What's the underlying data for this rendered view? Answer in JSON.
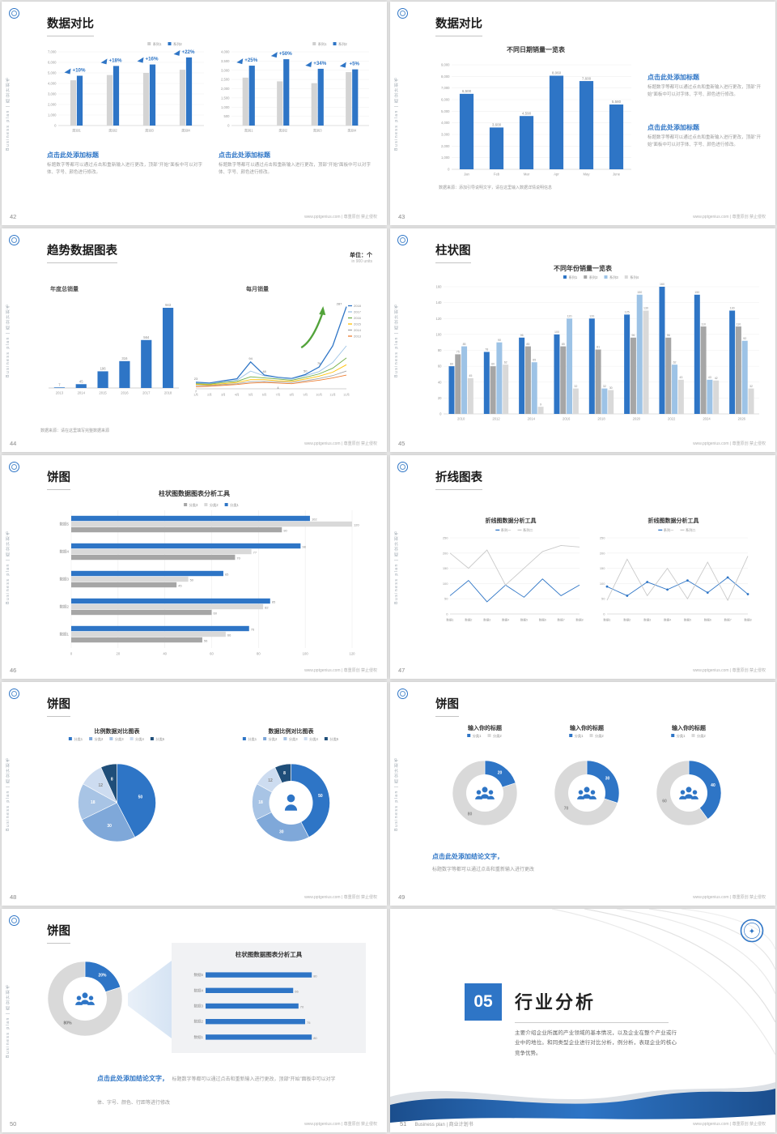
{
  "common": {
    "vertical_text": "Business plan | 商业计划书",
    "footer": "www.pptgenius.com | 尊重原创 禁止侵权",
    "accent": "#2e75c6"
  },
  "s42": {
    "number": "42",
    "title": "数据对比",
    "charts": [
      {
        "type": "bar",
        "legend": [
          "系列1",
          "系列2"
        ],
        "legend_colors": [
          "#cfcfcf",
          "#2e75c6"
        ],
        "yticks": [
          "7,000",
          "6,000",
          "5,000",
          "4,000",
          "3,000",
          "2,000",
          "1,000",
          "0"
        ],
        "ymax": 7000,
        "bar_max": 8,
        "categories": [
          "类别1",
          "类别2",
          "类别3",
          "类别4"
        ],
        "series": [
          {
            "name": "系列1",
            "color": "#d4d4d4",
            "values": [
              4300,
              4800,
              5000,
              5300
            ]
          },
          {
            "name": "系列2",
            "color": "#2e75c6",
            "values": [
              4730,
              5660,
              5800,
              6470
            ]
          }
        ],
        "callouts": [
          "+10%",
          "+18%",
          "+16%",
          "+22%"
        ]
      },
      {
        "type": "bar",
        "legend": [
          "系列1",
          "系列2"
        ],
        "legend_colors": [
          "#cfcfcf",
          "#2e75c6"
        ],
        "yticks": [
          "4,000",
          "3,500",
          "3,000",
          "2,500",
          "2,000",
          "1,500",
          "1,000",
          "500",
          "0"
        ],
        "ymax": 4000,
        "bar_max": 8,
        "categories": [
          "类别1",
          "类别2",
          "类别3",
          "类别4"
        ],
        "series": [
          {
            "name": "系列1",
            "color": "#d4d4d4",
            "values": [
              2600,
              2400,
              2300,
              2900
            ]
          },
          {
            "name": "系列2",
            "color": "#2e75c6",
            "values": [
              3250,
              3600,
              3080,
              3050
            ]
          }
        ],
        "callouts": [
          "+25%",
          "+50%",
          "+34%",
          "+5%"
        ]
      }
    ],
    "blocks": [
      {
        "heading": "点击此处添加标题",
        "body": "标题数字等都可以通过点击和重新输入进行更改，顶部“开始”面板中可以对字体、字号、颜色进行修改。"
      },
      {
        "heading": "点击此处添加标题",
        "body": "标题数字等都可以通过点击和重新输入进行更改，顶部“开始”面板中可以对字体、字号、颜色进行修改。"
      }
    ]
  },
  "s43": {
    "number": "43",
    "title": "数据对比",
    "chart_title": "不同日期销量一览表",
    "chart": {
      "type": "bar",
      "ml": 24,
      "mt": 12,
      "bar_max": 18,
      "label_size": 4.5,
      "yticks": [
        "9,000",
        "8,000",
        "7,000",
        "6,000",
        "5,000",
        "4,000",
        "3,000",
        "2,000",
        "1,000",
        "0"
      ],
      "ymax": 9000,
      "categories": [
        "Jan",
        "Feb",
        "Mar",
        "Apr",
        "May",
        "June"
      ],
      "series": [
        {
          "name": "销量",
          "color": "#2e75c6",
          "values": [
            6500,
            3600,
            4590,
            8060,
            7600,
            5580
          ]
        }
      ],
      "bar_labels": true,
      "label_text": [
        [
          "6,500",
          "3,600",
          "4,590",
          "8,060",
          "7,600",
          "5,580"
        ]
      ]
    },
    "blocks": [
      {
        "heading": "点击此处添加标题",
        "body": "标题数字等都可以通过点击和重新输入进行更改，顶部“开始”面板中可以对字体、字号、颜色进行修改。"
      },
      {
        "heading": "点击此处添加标题",
        "body": "标题数字等都可以通过点击和重新输入进行更改，顶部“开始”面板中可以对字体、字号、颜色进行修改。"
      }
    ],
    "source": "数据来源：添加引导说明文字，请在这里输入数据详情说明信息"
  },
  "s44": {
    "number": "44",
    "title": "趋势数据图表",
    "unit_label": "单位：个",
    "unit_sub": "in 900 units",
    "bar_title": "年度总销量",
    "line_title": "每月销量",
    "bar": {
      "type": "bar",
      "ml": 10,
      "mt": 10,
      "bar_max": 14,
      "label_size": 4.2,
      "yticks": [],
      "ymax": 1000,
      "categories": [
        "2013",
        "2014",
        "2015",
        "2016",
        "2017",
        "2018"
      ],
      "series": [
        {
          "name": "年度总销量",
          "color": "#2e75c6",
          "values": [
            7,
            45,
            196,
            316,
            564,
            943
          ]
        }
      ],
      "bar_labels": true
    },
    "line": {
      "type": "line",
      "ml": 8,
      "mt": 10,
      "yticks": [],
      "ymax": 300,
      "legend_pos": "right",
      "x": [
        "1月",
        "2月",
        "3月",
        "4月",
        "5月",
        "6月",
        "7月",
        "8月",
        "9月",
        "10月",
        "11月",
        "12月"
      ],
      "series": [
        {
          "name": "2018",
          "color": "#2e75c6",
          "values": [
            23,
            20,
            28,
            35,
            94,
            48,
            40,
            36,
            50,
            76,
            150,
            287
          ],
          "width": 1.3
        },
        {
          "name": "2017",
          "color": "#9dc3e6",
          "values": [
            20,
            18,
            25,
            30,
            62,
            45,
            38,
            34,
            46,
            60,
            92,
            150
          ]
        },
        {
          "name": "2016",
          "color": "#70ad47",
          "values": [
            18,
            16,
            22,
            26,
            42,
            38,
            34,
            30,
            40,
            52,
            72,
            108
          ]
        },
        {
          "name": "2015",
          "color": "#ffc000",
          "values": [
            15,
            14,
            18,
            22,
            32,
            32,
            28,
            26,
            34,
            44,
            58,
            84
          ]
        },
        {
          "name": "2014",
          "color": "#a6a6a6",
          "values": [
            12,
            11,
            15,
            18,
            25,
            26,
            24,
            22,
            28,
            36,
            46,
            62
          ]
        },
        {
          "name": "2013",
          "color": "#ed7d31",
          "values": [
            7,
            9,
            12,
            15,
            20,
            22,
            20,
            18,
            24,
            30,
            38,
            48
          ]
        }
      ],
      "point_labels": [
        {
          "i": 0,
          "s": 0,
          "t": "23",
          "dy": -3
        },
        {
          "i": 0,
          "s": 5,
          "t": "7",
          "dy": 7
        },
        {
          "i": 4,
          "s": 0,
          "t": "94",
          "dy": -3
        },
        {
          "i": 5,
          "s": 0,
          "t": "48",
          "dy": -3
        },
        {
          "i": 6,
          "s": 5,
          "t": "4",
          "dy": 7
        },
        {
          "i": 8,
          "s": 0,
          "t": "50",
          "dy": -3
        },
        {
          "i": 9,
          "s": 0,
          "t": "76",
          "dy": -3
        },
        {
          "i": 11,
          "s": 0,
          "t": "287",
          "dy": -2,
          "dx": -9
        }
      ],
      "annotation": "growth-arrow"
    },
    "source": "数据来源：请在这里填写完整数据来源"
  },
  "s45": {
    "number": "45",
    "title": "柱状图",
    "chart_title": "不同年份销量一览表",
    "chart": {
      "type": "bar",
      "mt": 16,
      "legend_pos": "center",
      "legend": [
        "系列1",
        "系列2",
        "系列3",
        "系列4"
      ],
      "legend_colors": [
        "#2e75c6",
        "#a6a6a6",
        "#9dc3e6",
        "#d9d9d9"
      ],
      "yticks": [
        "160",
        "140",
        "120",
        "100",
        "80",
        "60",
        "40",
        "20",
        "0"
      ],
      "ymax": 160,
      "categories": [
        "2010",
        "2012",
        "2014",
        "2016",
        "2018",
        "2020",
        "2022",
        "2024",
        "2026"
      ],
      "series": [
        {
          "name": "系列1",
          "color": "#2e75c6",
          "values": [
            60,
            78,
            96,
            100,
            120,
            125,
            160,
            150,
            130
          ]
        },
        {
          "name": "系列2",
          "color": "#a6a6a6",
          "values": [
            75,
            60,
            85,
            85,
            81,
            96,
            96,
            110,
            110
          ]
        },
        {
          "name": "系列3",
          "color": "#9dc3e6",
          "values": [
            85,
            90,
            65,
            120,
            32,
            150,
            62,
            43,
            92
          ]
        },
        {
          "name": "系列4",
          "color": "#d9d9d9",
          "values": [
            45,
            62,
            9,
            32,
            30,
            130,
            43,
            42,
            32
          ]
        }
      ],
      "bar_labels": true
    }
  },
  "s46": {
    "number": "46",
    "title": "饼图",
    "chart_title": "柱状图数据图表分析工具",
    "chart": {
      "type": "hbar",
      "ml": 22,
      "legend": [
        "分类3",
        "分类2",
        "分类1"
      ],
      "legend_colors": [
        "#a6a6a6",
        "#d9d9d9",
        "#2e75c6"
      ],
      "categories": [
        "数据5",
        "数据4",
        "数据3",
        "数据2",
        "数据1"
      ],
      "series": [
        {
          "name": "分类1",
          "color": "#2e75c6",
          "values": [
            102,
            98,
            65,
            85,
            76
          ]
        },
        {
          "name": "分类2",
          "color": "#d9d9d9",
          "values": [
            120,
            77,
            50,
            82,
            66
          ]
        },
        {
          "name": "分类3",
          "color": "#a6a6a6",
          "values": [
            90,
            70,
            45,
            60,
            56
          ]
        }
      ],
      "xticks": [
        "0",
        "20",
        "40",
        "60",
        "80",
        "100",
        "120"
      ],
      "xmax": 120
    }
  },
  "s47": {
    "number": "47",
    "title": "折线图表",
    "charts": [
      {
        "title": "折线图数据分析工具",
        "type": "line",
        "mt": 14,
        "legend": [
          "系列一",
          "系列二"
        ],
        "yticks": [
          "250",
          "200",
          "150",
          "100",
          "50",
          "0"
        ],
        "ymax": 250,
        "x": [
          "数据1",
          "数据2",
          "数据3",
          "数据4",
          "数据5",
          "数据6",
          "数据7",
          "数据8"
        ],
        "series": [
          {
            "name": "系列一",
            "color": "#2e75c6",
            "values": [
              60,
              110,
              40,
              95,
              55,
              115,
              60,
              95
            ]
          },
          {
            "name": "系列二",
            "color": "#c9c9c9",
            "values": [
              200,
              150,
              210,
              95,
              150,
              205,
              225,
              220
            ]
          }
        ]
      },
      {
        "title": "折线图数据分析工具",
        "type": "line",
        "mt": 14,
        "legend": [
          "系列一",
          "系列二"
        ],
        "yticks": [
          "250",
          "200",
          "150",
          "100",
          "50",
          "0"
        ],
        "ymax": 250,
        "x": [
          "数据1",
          "数据2",
          "数据3",
          "数据4",
          "数据5",
          "数据6",
          "数据7",
          "数据8"
        ],
        "series": [
          {
            "name": "系列一",
            "color": "#2e75c6",
            "values": [
              90,
              60,
              105,
              80,
              110,
              70,
              120,
              65
            ],
            "markers": true
          },
          {
            "name": "系列二",
            "color": "#c9c9c9",
            "values": [
              45,
              180,
              60,
              150,
              50,
              170,
              45,
              190
            ]
          }
        ]
      }
    ]
  },
  "s48": {
    "number": "48",
    "title": "饼图",
    "charts": [
      {
        "title": "比例数据对比图表",
        "type": "pie",
        "r": 48,
        "legend": [
          "分类1",
          "分类2",
          "分类3",
          "分类4",
          "分类5"
        ],
        "legend_colors": [
          "#2e75c6",
          "#7fa8d9",
          "#a8c4e5",
          "#cddcf0",
          "#1f4e79"
        ],
        "values": [
          50,
          30,
          18,
          12,
          8
        ],
        "labels": [
          "50",
          "30",
          "18",
          "12",
          "8"
        ],
        "colors": [
          "#2e75c6",
          "#7fa8d9",
          "#a8c4e5",
          "#cddcf0",
          "#1f4e79"
        ],
        "label_colors": [
          "#fff",
          "#fff",
          "#fff",
          "#888",
          "#fff"
        ]
      },
      {
        "title": "数据比例对比图表",
        "type": "pie",
        "donut": true,
        "r": 48,
        "inner": 27,
        "icon": "person",
        "legend": [
          "分类1",
          "分类2",
          "分类3",
          "分类4",
          "分类5"
        ],
        "legend_colors": [
          "#2e75c6",
          "#7fa8d9",
          "#a8c4e5",
          "#cddcf0",
          "#1f4e79"
        ],
        "values": [
          50,
          30,
          18,
          12,
          8
        ],
        "labels": [
          "50",
          "30",
          "18",
          "12",
          "8"
        ],
        "colors": [
          "#2e75c6",
          "#7fa8d9",
          "#a8c4e5",
          "#cddcf0",
          "#1f4e79"
        ],
        "label_colors": [
          "#fff",
          "#fff",
          "#fff",
          "#888",
          "#fff"
        ]
      }
    ]
  },
  "s49": {
    "number": "49",
    "title": "饼图",
    "donuts": [
      {
        "title": "输入你的标题",
        "type": "pie",
        "donut": true,
        "r": 40,
        "inner": 23,
        "icon": "people",
        "legend": [
          "分类1",
          "分类2"
        ],
        "legend_colors": [
          "#2e75c6",
          "#d9d9d9"
        ],
        "values": [
          20,
          80
        ],
        "labels": [
          "20",
          "80"
        ],
        "colors": [
          "#2e75c6",
          "#d9d9d9"
        ],
        "label_colors": [
          "#fff",
          "#888"
        ]
      },
      {
        "title": "输入你的标题",
        "type": "pie",
        "donut": true,
        "r": 40,
        "inner": 23,
        "icon": "people",
        "legend": [
          "分类1",
          "分类2"
        ],
        "legend_colors": [
          "#2e75c6",
          "#d9d9d9"
        ],
        "values": [
          30,
          70
        ],
        "labels": [
          "30",
          "70"
        ],
        "colors": [
          "#2e75c6",
          "#d9d9d9"
        ],
        "label_colors": [
          "#fff",
          "#888"
        ]
      },
      {
        "title": "输入你的标题",
        "type": "pie",
        "donut": true,
        "r": 40,
        "inner": 23,
        "icon": "people",
        "legend": [
          "分类1",
          "分类2"
        ],
        "legend_colors": [
          "#2e75c6",
          "#d9d9d9"
        ],
        "values": [
          40,
          60
        ],
        "labels": [
          "40",
          "60"
        ],
        "colors": [
          "#2e75c6",
          "#d9d9d9"
        ],
        "label_colors": [
          "#fff",
          "#888"
        ]
      }
    ],
    "conclusion_heading": "点击此处添加结论文字，",
    "conclusion_body": "标题数字等都可以通过点击和重新输入进行更改"
  },
  "s50": {
    "number": "50",
    "title": "饼图",
    "donut": {
      "type": "pie",
      "donut": true,
      "r": 46,
      "inner": 27,
      "icon": "people",
      "values": [
        20,
        80
      ],
      "labels": [
        "20%",
        "80%"
      ],
      "colors": [
        "#2e75c6",
        "#d9d9d9"
      ],
      "label_colors": [
        "#fff",
        "#777"
      ]
    },
    "panel_title": "柱状图数据图表分析工具",
    "panel_chart": {
      "type": "hbar",
      "ml": 24,
      "xmax": 100,
      "categories": [
        "数据5",
        "数据4",
        "数据3",
        "数据2",
        "数据1"
      ],
      "series": [
        {
          "name": "数据",
          "color": "#2e75c6",
          "values": [
            80,
            66,
            70,
            75,
            80
          ]
        }
      ]
    },
    "conclusion_heading": "点击此处添加结论文字，",
    "conclusion_body": "标题数字等都可以通过点击和重新输入进行更改，顶部“开始”面板中可以对字体、字号、颜色、行距等进行修改"
  },
  "s51": {
    "number": "51",
    "footer_left": "Business plan | 商业计划书",
    "section_number": "05",
    "section_title": "行业分析",
    "body": "主要介绍企业所属的产业领域的基本情况，以及企业在整个产业或行业中的地位。和同类型企业进行对比分析，例分析，表现企业的核心竞争优势。"
  }
}
